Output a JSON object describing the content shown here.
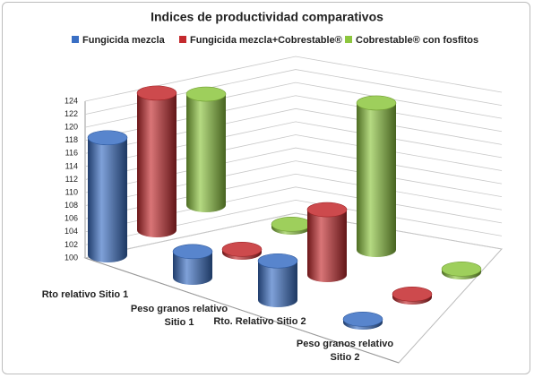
{
  "chart_data": {
    "type": "bar3d",
    "title": "Indices de productividad comparativos",
    "categories": [
      "Rto relativo Sitio 1",
      "Peso granos relativo Sitio 1",
      "Rto. Relativo Sitio 2",
      "Peso granos relativo Sitio 2"
    ],
    "series": [
      {
        "name": "Fungicida mezcla",
        "color": "#3a6fc4",
        "values": [
          118,
          104,
          106,
          100.5
        ]
      },
      {
        "name": "Fungicida mezcla+Cobrestable®",
        "color": "#c42a2e",
        "values": [
          121,
          100.5,
          110,
          100.5
        ]
      },
      {
        "name": "Cobrestable® con fosfitos",
        "color": "#8dc63f",
        "values": [
          117,
          100.5,
          122.5,
          100.5
        ]
      }
    ],
    "ylim": [
      100,
      124
    ],
    "yticks": [
      100,
      102,
      104,
      106,
      108,
      110,
      112,
      114,
      116,
      118,
      120,
      122,
      124
    ],
    "grid": true
  }
}
